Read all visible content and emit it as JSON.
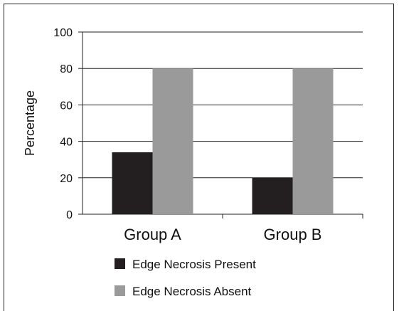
{
  "chart_data": {
    "type": "bar",
    "categories": [
      "Group A",
      "Group B"
    ],
    "series": [
      {
        "name": "Edge Necrosis Present",
        "values": [
          34,
          20
        ],
        "color": "#231f20"
      },
      {
        "name": "Edge Necrosis Absent",
        "values": [
          80,
          80
        ],
        "color": "#9a9a9a"
      }
    ],
    "yticks": [
      "0",
      "20",
      "40",
      "60",
      "80",
      "100"
    ],
    "ylim": [
      0,
      100
    ],
    "ylabel": "Percentage",
    "xlabel": "",
    "title": "",
    "grid": true,
    "legend_position": "bottom"
  }
}
